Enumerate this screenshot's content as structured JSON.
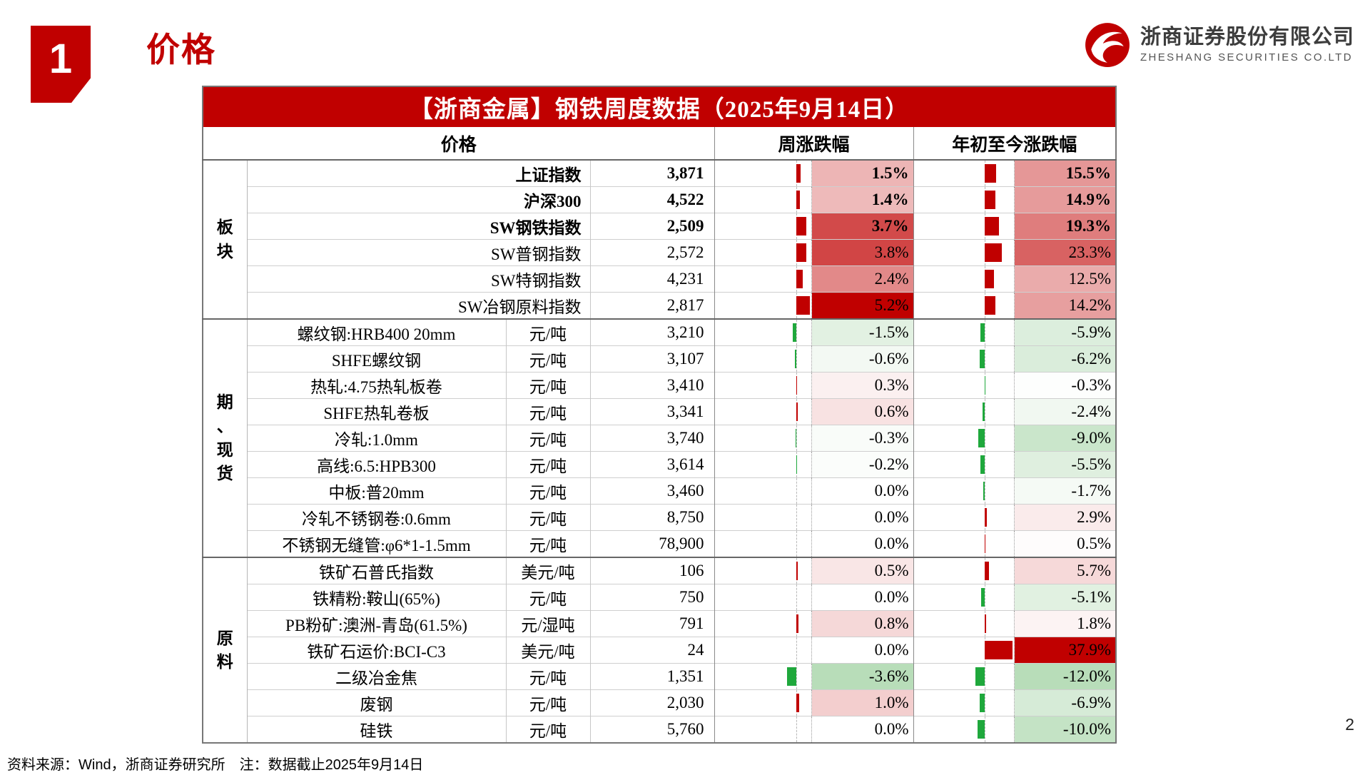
{
  "page": {
    "section_number": "1",
    "title": "价格",
    "page_number": "2",
    "footer": "资料来源：Wind，浙商证券研究所　注：数据截止2025年9月14日"
  },
  "logo": {
    "company_cn": "浙商证券股份有限公司",
    "company_en": "ZHESHANG SECURITIES CO.LTD"
  },
  "colors": {
    "accent_red": "#c00000",
    "bar_positive": "#c00000",
    "bar_negative": "#1fa83c"
  },
  "table": {
    "title": "【浙商金属】钢铁周度数据（2025年9月14日）",
    "headers": {
      "price": "价格",
      "weekly": "周涨跌幅",
      "ytd": "年初至今涨跌幅"
    },
    "groups": [
      {
        "label": "板块",
        "rows": [
          {
            "name": "上证指数",
            "unit": "",
            "value": "3,871",
            "weekly": "1.5%",
            "ytd": "15.5%",
            "bold": true
          },
          {
            "name": "沪深300",
            "unit": "",
            "value": "4,522",
            "weekly": "1.4%",
            "ytd": "14.9%",
            "bold": true
          },
          {
            "name": "SW钢铁指数",
            "unit": "",
            "value": "2,509",
            "weekly": "3.7%",
            "ytd": "19.3%",
            "bold": true
          },
          {
            "name": "SW普钢指数",
            "unit": "",
            "value": "2,572",
            "weekly": "3.8%",
            "ytd": "23.3%",
            "bold": false
          },
          {
            "name": "SW特钢指数",
            "unit": "",
            "value": "4,231",
            "weekly": "2.4%",
            "ytd": "12.5%",
            "bold": false
          },
          {
            "name": "SW冶钢原料指数",
            "unit": "",
            "value": "2,817",
            "weekly": "5.2%",
            "ytd": "14.2%",
            "bold": false
          }
        ]
      },
      {
        "label": "期、现货",
        "rows": [
          {
            "name": "螺纹钢:HRB400 20mm",
            "unit": "元/吨",
            "value": "3,210",
            "weekly": "-1.5%",
            "ytd": "-5.9%",
            "bold": false
          },
          {
            "name": "SHFE螺纹钢",
            "unit": "元/吨",
            "value": "3,107",
            "weekly": "-0.6%",
            "ytd": "-6.2%",
            "bold": false
          },
          {
            "name": "热轧:4.75热轧板卷",
            "unit": "元/吨",
            "value": "3,410",
            "weekly": "0.3%",
            "ytd": "-0.3%",
            "bold": false
          },
          {
            "name": "SHFE热轧卷板",
            "unit": "元/吨",
            "value": "3,341",
            "weekly": "0.6%",
            "ytd": "-2.4%",
            "bold": false
          },
          {
            "name": "冷轧:1.0mm",
            "unit": "元/吨",
            "value": "3,740",
            "weekly": "-0.3%",
            "ytd": "-9.0%",
            "bold": false
          },
          {
            "name": "高线:6.5:HPB300",
            "unit": "元/吨",
            "value": "3,614",
            "weekly": "-0.2%",
            "ytd": "-5.5%",
            "bold": false
          },
          {
            "name": "中板:普20mm",
            "unit": "元/吨",
            "value": "3,460",
            "weekly": "0.0%",
            "ytd": "-1.7%",
            "bold": false
          },
          {
            "name": "冷轧不锈钢卷:0.6mm",
            "unit": "元/吨",
            "value": "8,750",
            "weekly": "0.0%",
            "ytd": "2.9%",
            "bold": false
          },
          {
            "name": "不锈钢无缝管:φ6*1-1.5mm",
            "unit": "元/吨",
            "value": "78,900",
            "weekly": "0.0%",
            "ytd": "0.5%",
            "bold": false
          }
        ]
      },
      {
        "label": "原料",
        "rows": [
          {
            "name": "铁矿石普氏指数",
            "unit": "美元/吨",
            "value": "106",
            "weekly": "0.5%",
            "ytd": "5.7%",
            "bold": false
          },
          {
            "name": "铁精粉:鞍山(65%)",
            "unit": "元/吨",
            "value": "750",
            "weekly": "0.0%",
            "ytd": "-5.1%",
            "bold": false
          },
          {
            "name": "PB粉矿:澳洲-青岛(61.5%)",
            "unit": "元/湿吨",
            "value": "791",
            "weekly": "0.8%",
            "ytd": "1.8%",
            "bold": false
          },
          {
            "name": "铁矿石运价:BCI-C3",
            "unit": "美元/吨",
            "value": "24",
            "weekly": "0.0%",
            "ytd": "37.9%",
            "bold": false
          },
          {
            "name": "二级冶金焦",
            "unit": "元/吨",
            "value": "1,351",
            "weekly": "-3.6%",
            "ytd": "-12.0%",
            "bold": false
          },
          {
            "name": "废钢",
            "unit": "元/吨",
            "value": "2,030",
            "weekly": "1.0%",
            "ytd": "-6.9%",
            "bold": false
          },
          {
            "name": "硅铁",
            "unit": "元/吨",
            "value": "5,760",
            "weekly": "0.0%",
            "ytd": "-10.0%",
            "bold": false
          }
        ]
      }
    ]
  }
}
